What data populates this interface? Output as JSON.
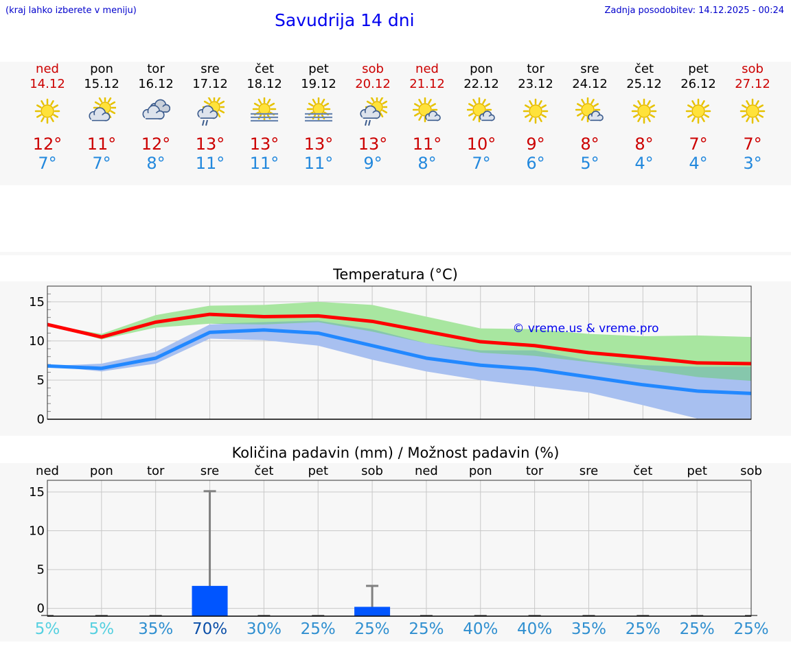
{
  "header": {
    "hint": "(kraj lahko izberete v meniju)",
    "title": "Savudrija 14 dni",
    "updated": "Zadnja posodobitev: 14.12.2025 - 00:24"
  },
  "days": [
    {
      "name": "ned",
      "date": "14.12",
      "weekend": true,
      "icon": "sun-icon",
      "max": "12°",
      "min": "7°"
    },
    {
      "name": "pon",
      "date": "15.12",
      "weekend": false,
      "icon": "sun-cloud-icon",
      "max": "11°",
      "min": "7°"
    },
    {
      "name": "tor",
      "date": "16.12",
      "weekend": false,
      "icon": "cloudy-icon",
      "max": "12°",
      "min": "8°"
    },
    {
      "name": "sre",
      "date": "17.12",
      "weekend": false,
      "icon": "sun-cloud-rain-icon",
      "max": "13°",
      "min": "11°"
    },
    {
      "name": "čet",
      "date": "18.12",
      "weekend": false,
      "icon": "sun-fog-icon",
      "max": "13°",
      "min": "11°"
    },
    {
      "name": "pet",
      "date": "19.12",
      "weekend": false,
      "icon": "sun-fog-icon",
      "max": "13°",
      "min": "11°"
    },
    {
      "name": "sob",
      "date": "20.12",
      "weekend": true,
      "icon": "sun-cloud-rain-icon",
      "max": "13°",
      "min": "9°"
    },
    {
      "name": "ned",
      "date": "21.12",
      "weekend": true,
      "icon": "sun-small-cloud-icon",
      "max": "11°",
      "min": "8°"
    },
    {
      "name": "pon",
      "date": "22.12",
      "weekend": false,
      "icon": "sun-small-cloud-icon",
      "max": "10°",
      "min": "7°"
    },
    {
      "name": "tor",
      "date": "23.12",
      "weekend": false,
      "icon": "sun-icon",
      "max": "9°",
      "min": "6°"
    },
    {
      "name": "sre",
      "date": "24.12",
      "weekend": false,
      "icon": "sun-small-cloud-icon",
      "max": "8°",
      "min": "5°"
    },
    {
      "name": "čet",
      "date": "25.12",
      "weekend": false,
      "icon": "sun-icon",
      "max": "8°",
      "min": "4°"
    },
    {
      "name": "pet",
      "date": "26.12",
      "weekend": false,
      "icon": "sun-icon",
      "max": "7°",
      "min": "4°"
    },
    {
      "name": "sob",
      "date": "27.12",
      "weekend": true,
      "icon": "sun-icon",
      "max": "7°",
      "min": "3°"
    }
  ],
  "colors": {
    "max": "#ff0000",
    "min": "#2288ff",
    "max_band": "#a8e6a0",
    "min_band": "#a8c0f0",
    "overlap": "#80c8a0",
    "bar": "#0055ff",
    "whisker": "#808080",
    "grid": "#c8c8c8"
  },
  "chart_data": [
    {
      "type": "line",
      "title": "Temperatura (°C)",
      "watermark": "© vreme.us & vreme.pro",
      "ylim": [
        0,
        17
      ],
      "yticks": [
        0,
        5,
        10,
        15
      ],
      "x": [
        0,
        1,
        2,
        3,
        4,
        5,
        6,
        7,
        8,
        9,
        10,
        11,
        12,
        13
      ],
      "series": [
        {
          "name": "max",
          "values": [
            12.1,
            10.5,
            12.4,
            13.4,
            13.1,
            13.2,
            12.5,
            11.2,
            9.9,
            9.4,
            8.5,
            7.9,
            7.2,
            7.1
          ]
        },
        {
          "name": "min",
          "values": [
            6.8,
            6.5,
            7.8,
            11.1,
            11.4,
            11.0,
            9.4,
            7.8,
            6.9,
            6.4,
            5.4,
            4.4,
            3.6,
            3.3
          ]
        }
      ],
      "bands": [
        {
          "name": "max-range",
          "low": [
            12.1,
            10.2,
            11.7,
            12.2,
            12.1,
            12.4,
            11.2,
            9.7,
            8.5,
            8.1,
            7.3,
            6.4,
            5.4,
            4.9
          ],
          "high": [
            12.1,
            10.9,
            13.3,
            14.5,
            14.6,
            15.0,
            14.6,
            13.1,
            11.6,
            11.5,
            10.9,
            10.6,
            10.7,
            10.5
          ]
        },
        {
          "name": "min-range",
          "low": [
            6.8,
            6.1,
            7.1,
            10.3,
            10.1,
            9.4,
            7.6,
            6.1,
            5.0,
            4.2,
            3.4,
            1.8,
            0.1,
            0.1
          ],
          "high": [
            6.8,
            7.1,
            8.6,
            12.1,
            12.4,
            12.6,
            11.5,
            9.7,
            8.8,
            8.8,
            7.5,
            6.9,
            6.7,
            6.7
          ]
        }
      ]
    },
    {
      "type": "bar",
      "title": "Količina padavin (mm) / Možnost padavin (%)",
      "ylim": [
        -1,
        16.5
      ],
      "yticks": [
        0,
        5,
        10,
        15
      ],
      "categories": [
        "ned",
        "pon",
        "tor",
        "sre",
        "čet",
        "pet",
        "sob",
        "ned",
        "pon",
        "tor",
        "sre",
        "čet",
        "pet",
        "sob"
      ],
      "values": [
        0,
        0,
        0,
        2.9,
        0,
        0,
        0.2,
        0,
        0,
        0,
        0,
        0,
        0,
        0
      ],
      "whisker_high": [
        0,
        0,
        0,
        15.1,
        0,
        0,
        2.9,
        0,
        0,
        0,
        0,
        0,
        0,
        0
      ],
      "probability": [
        "5%",
        "5%",
        "35%",
        "70%",
        "30%",
        "25%",
        "25%",
        "25%",
        "40%",
        "40%",
        "35%",
        "25%",
        "25%",
        "25%"
      ],
      "probability_values": [
        5,
        5,
        35,
        70,
        30,
        25,
        25,
        25,
        40,
        40,
        35,
        25,
        25,
        25
      ]
    }
  ]
}
